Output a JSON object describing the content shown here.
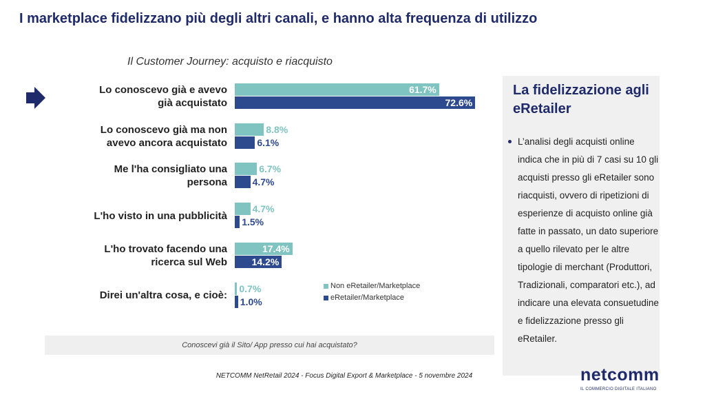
{
  "header": {
    "title": "I marketplace fidelizzano più degli altri canali, e hanno alta frequenza di utilizzo"
  },
  "chart_data": {
    "type": "bar",
    "orientation": "horizontal",
    "subtitle": "Il Customer Journey: acquisto e riacquisto",
    "categories": [
      "Lo conoscevo già e avevo già acquistato",
      "Lo conoscevo già ma non avevo ancora acquistato",
      "Me l'ha consigliato una persona",
      "L'ho visto in una pubblicità",
      "L'ho trovato facendo una ricerca sul Web",
      "Direi un'altra cosa, e cioè:"
    ],
    "series": [
      {
        "name": "Non eRetailer/Marketplace",
        "color": "#7fc4c0",
        "values": [
          61.7,
          8.8,
          6.7,
          4.7,
          17.4,
          0.7
        ],
        "value_labels": [
          "61.7%",
          "8.8%",
          "6.7%",
          "4.7%",
          "17.4%",
          "0.7%"
        ]
      },
      {
        "name": "eRetailer/Marketplace",
        "color": "#2e4a8f",
        "values": [
          72.6,
          6.1,
          4.7,
          1.5,
          14.2,
          1.0
        ],
        "value_labels": [
          "72.6%",
          "6.1%",
          "4.7%",
          "1.5%",
          "14.2%",
          "1.0%"
        ]
      }
    ],
    "legend": "bottom-right",
    "question": "Conoscevi già il Sito/ App presso cui hai acquistato?"
  },
  "sidebar": {
    "heading": "La fidelizzazione agli eRetailer",
    "bullet": "L’analisi degli acquisti online indica che in più di 7 casi su 10 gli acquisti presso gli eRetailer sono riacquisti, ovvero di ripetizioni di esperienze di acquisto online già fatte in passato, un dato superiore a quello rilevato per le altre tipologie di merchant (Produttori, Tradizionali, comparatori etc.), ad indicare una elevata consuetudine e fidelizzazione presso gli eRetailer."
  },
  "footer": {
    "source": "NETCOMM NetRetail 2024 - Focus Digital Export & Marketplace - 5 novembre 2024"
  },
  "logo": {
    "name": "netcomm",
    "tagline": "IL COMMERCIO DIGITALE ITALIANO"
  }
}
